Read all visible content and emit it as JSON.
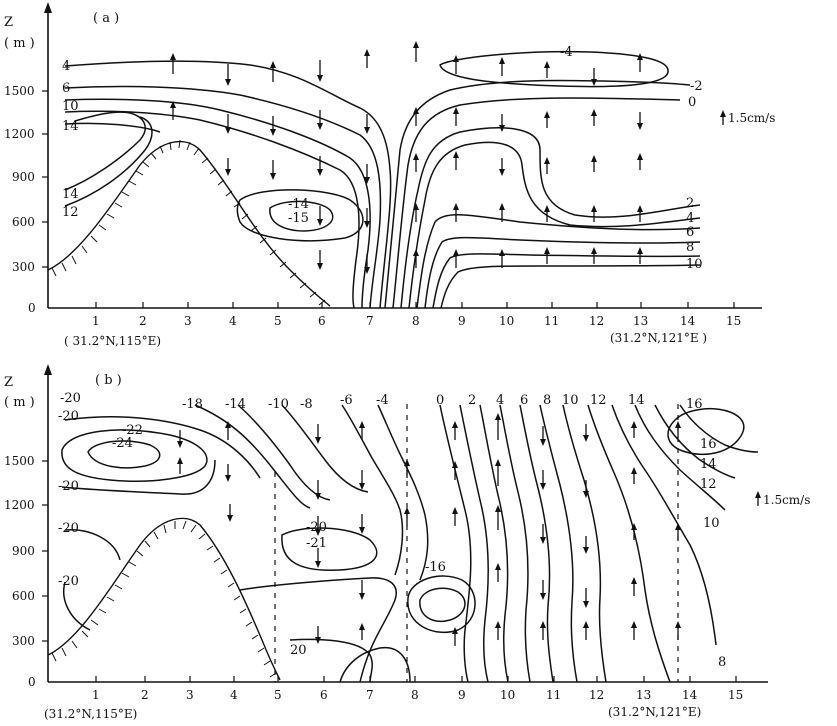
{
  "panels": [
    {
      "id": "a",
      "panel_label": "( a )",
      "axis_z": "Z",
      "axis_unit": "( m )",
      "y_ticks": [
        "1500",
        "1200",
        "900",
        "600",
        "300",
        "0"
      ],
      "x_ticks": [
        "1",
        "2",
        "3",
        "4",
        "5",
        "6",
        "7",
        "8",
        "9",
        "10",
        "11",
        "12",
        "13",
        "14",
        "15"
      ],
      "left_location": "( 31.2°N,115°E)",
      "right_location": "(31.2°N,121°E )",
      "scale_label": "1.5cm/s",
      "contour_labels": {
        "left": [
          "4",
          "6",
          "10",
          "14",
          "14",
          "12"
        ],
        "center": [
          "-14",
          "-15"
        ],
        "right": [
          "-4",
          "-2",
          "0",
          "2",
          "4",
          "6",
          "8",
          "10"
        ]
      }
    },
    {
      "id": "b",
      "panel_label": "( b )",
      "axis_z": "Z",
      "axis_unit": "( m )",
      "y_ticks": [
        "1500",
        "1200",
        "900",
        "600",
        "300",
        "0"
      ],
      "x_ticks": [
        "1",
        "2",
        "3",
        "4",
        "5",
        "6",
        "7",
        "8",
        "9",
        "10",
        "11",
        "12",
        "13",
        "14",
        "15"
      ],
      "left_location": "(31.2°N,115°E)",
      "right_location": "(31.2°N,121°E)",
      "scale_label": "1.5cm/s",
      "contour_labels": {
        "top": [
          "-20",
          "-18",
          "-14",
          "-10",
          "-8",
          "-6",
          "-4",
          "0",
          "2",
          "4",
          "6",
          "8",
          "10",
          "12",
          "14",
          "16"
        ],
        "left": [
          "-20",
          "-22",
          "-24",
          "-20",
          "-20",
          "-20"
        ],
        "center": [
          "-20",
          "-21",
          "-16",
          "20"
        ],
        "right": [
          "16",
          "14",
          "12",
          "10",
          "8"
        ]
      }
    }
  ]
}
